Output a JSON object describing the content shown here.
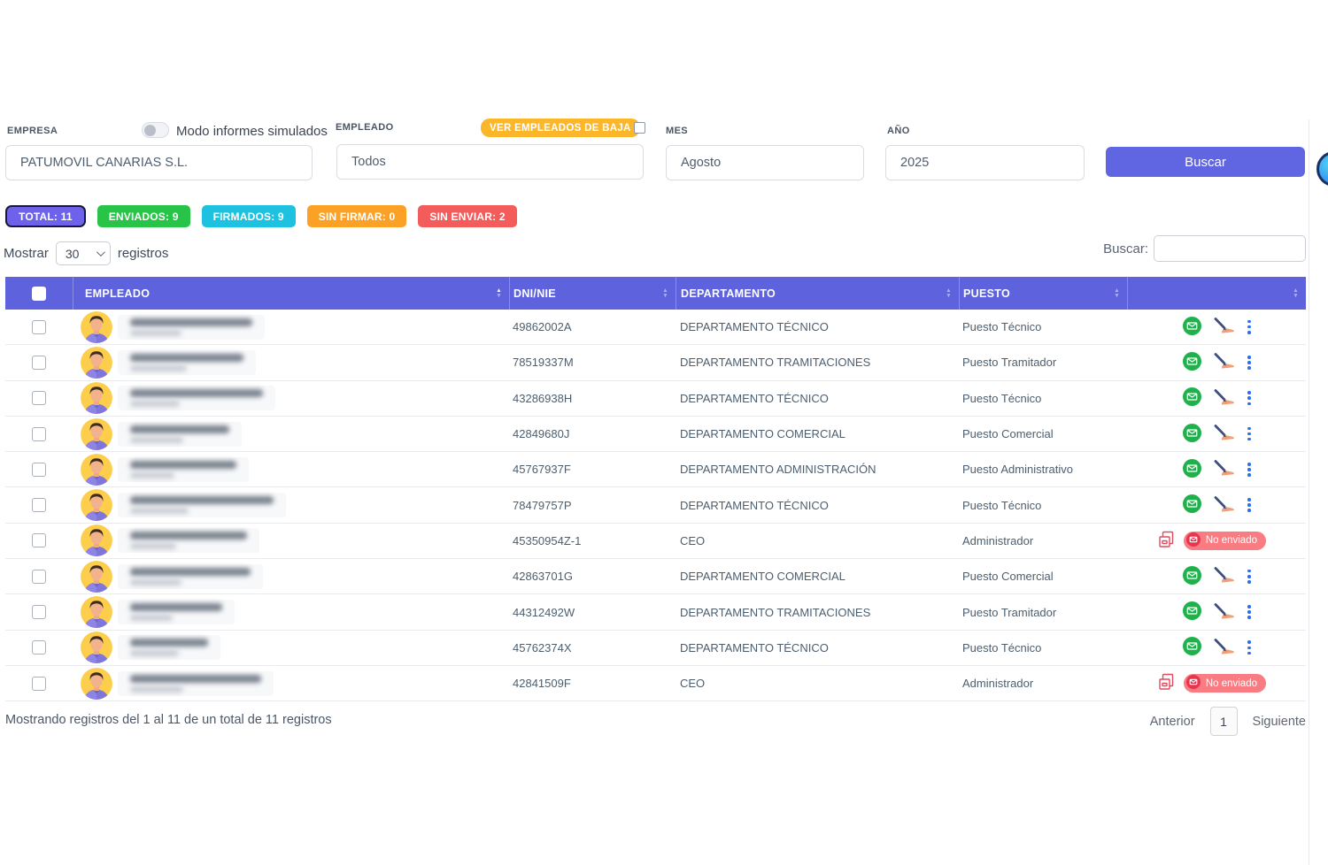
{
  "filters": {
    "empresa": {
      "label": "EMPRESA",
      "value": "PATUMOVIL CANARIAS S.L."
    },
    "modo_toggle_label": "Modo informes simulados",
    "empleado": {
      "label": "EMPLEADO",
      "value": "Todos",
      "baja_badge": "VER EMPLEADOS DE BAJA"
    },
    "mes": {
      "label": "MES",
      "value": "Agosto"
    },
    "ano": {
      "label": "AÑO",
      "value": "2025"
    },
    "buscar_button": "Buscar"
  },
  "summary_badges": [
    {
      "label": "TOTAL: 11",
      "color": "#6e62ea",
      "selected": true
    },
    {
      "label": "ENVIADOS: 9",
      "color": "#27c447",
      "selected": false
    },
    {
      "label": "FIRMADOS: 9",
      "color": "#1ec1e0",
      "selected": false
    },
    {
      "label": "SIN FIRMAR: 0",
      "color": "#fba226",
      "selected": false
    },
    {
      "label": "SIN ENVIAR: 2",
      "color": "#f45b5b",
      "selected": false
    }
  ],
  "list_controls": {
    "mostrar": "Mostrar",
    "page_size": "30",
    "registros": "registros",
    "buscar_label": "Buscar:",
    "search_value": ""
  },
  "table": {
    "headers": [
      "EMPLEADO",
      "DNI/NIE",
      "DEPARTAMENTO",
      "PUESTO",
      ""
    ],
    "no_enviado_label": "No enviado",
    "rows": [
      {
        "dni": "49862002A",
        "departamento": "DEPARTAMENTO TÉCNICO",
        "puesto": "Puesto Técnico",
        "status": "enviado",
        "name_blur_w": 138,
        "sub_blur_w": 58
      },
      {
        "dni": "78519337M",
        "departamento": "DEPARTAMENTO TRAMITACIONES",
        "puesto": "Puesto Tramitador",
        "status": "enviado",
        "name_blur_w": 128,
        "sub_blur_w": 64
      },
      {
        "dni": "43286938H",
        "departamento": "DEPARTAMENTO TÉCNICO",
        "puesto": "Puesto Técnico",
        "status": "enviado",
        "name_blur_w": 150,
        "sub_blur_w": 56
      },
      {
        "dni": "42849680J",
        "departamento": "DEPARTAMENTO COMERCIAL",
        "puesto": "Puesto Comercial",
        "status": "enviado",
        "name_blur_w": 112,
        "sub_blur_w": 60
      },
      {
        "dni": "45767937F",
        "departamento": "DEPARTAMENTO ADMINISTRACIÓN",
        "puesto": "Puesto Administrativo",
        "status": "enviado",
        "name_blur_w": 120,
        "sub_blur_w": 50
      },
      {
        "dni": "78479757P",
        "departamento": "DEPARTAMENTO TÉCNICO",
        "puesto": "Puesto Técnico",
        "status": "enviado",
        "name_blur_w": 162,
        "sub_blur_w": 66
      },
      {
        "dni": "45350954Z-1",
        "departamento": "CEO",
        "puesto": "Administrador",
        "status": "no_enviado",
        "name_blur_w": 132,
        "sub_blur_w": 52
      },
      {
        "dni": "42863701G",
        "departamento": "DEPARTAMENTO COMERCIAL",
        "puesto": "Puesto Comercial",
        "status": "enviado",
        "name_blur_w": 136,
        "sub_blur_w": 58
      },
      {
        "dni": "44312492W",
        "departamento": "DEPARTAMENTO TRAMITACIONES",
        "puesto": "Puesto Tramitador",
        "status": "enviado",
        "name_blur_w": 104,
        "sub_blur_w": 48
      },
      {
        "dni": "45762374X",
        "departamento": "DEPARTAMENTO TÉCNICO",
        "puesto": "Puesto Técnico",
        "status": "enviado",
        "name_blur_w": 88,
        "sub_blur_w": 55
      },
      {
        "dni": "42841509F",
        "departamento": "CEO",
        "puesto": "Administrador",
        "status": "no_enviado",
        "name_blur_w": 148,
        "sub_blur_w": 60
      }
    ]
  },
  "footer": {
    "info": "Mostrando registros del 1 al 11 de un total de 11 registros",
    "anterior": "Anterior",
    "page": "1",
    "siguiente": "Siguiente"
  },
  "colors": {
    "accent_indigo": "#5e63dd",
    "table_header_bg": "#5e63dd",
    "baja_badge_orange": "#fcb62a",
    "sent_icon_green": "#21b14c",
    "no_enviado_pill": "#f87c81",
    "not_sent_doc_red": "#e04a5f",
    "kebab_blue": "#2a6fec"
  },
  "icons": {
    "sent_mail": "envelope-in-green-circle",
    "signature": "hand-signing-with-pen",
    "row_menu": "vertical-kebab-dots",
    "not_sent_doc": "red-document-copy",
    "page_size_chevron": "chevron-down"
  }
}
